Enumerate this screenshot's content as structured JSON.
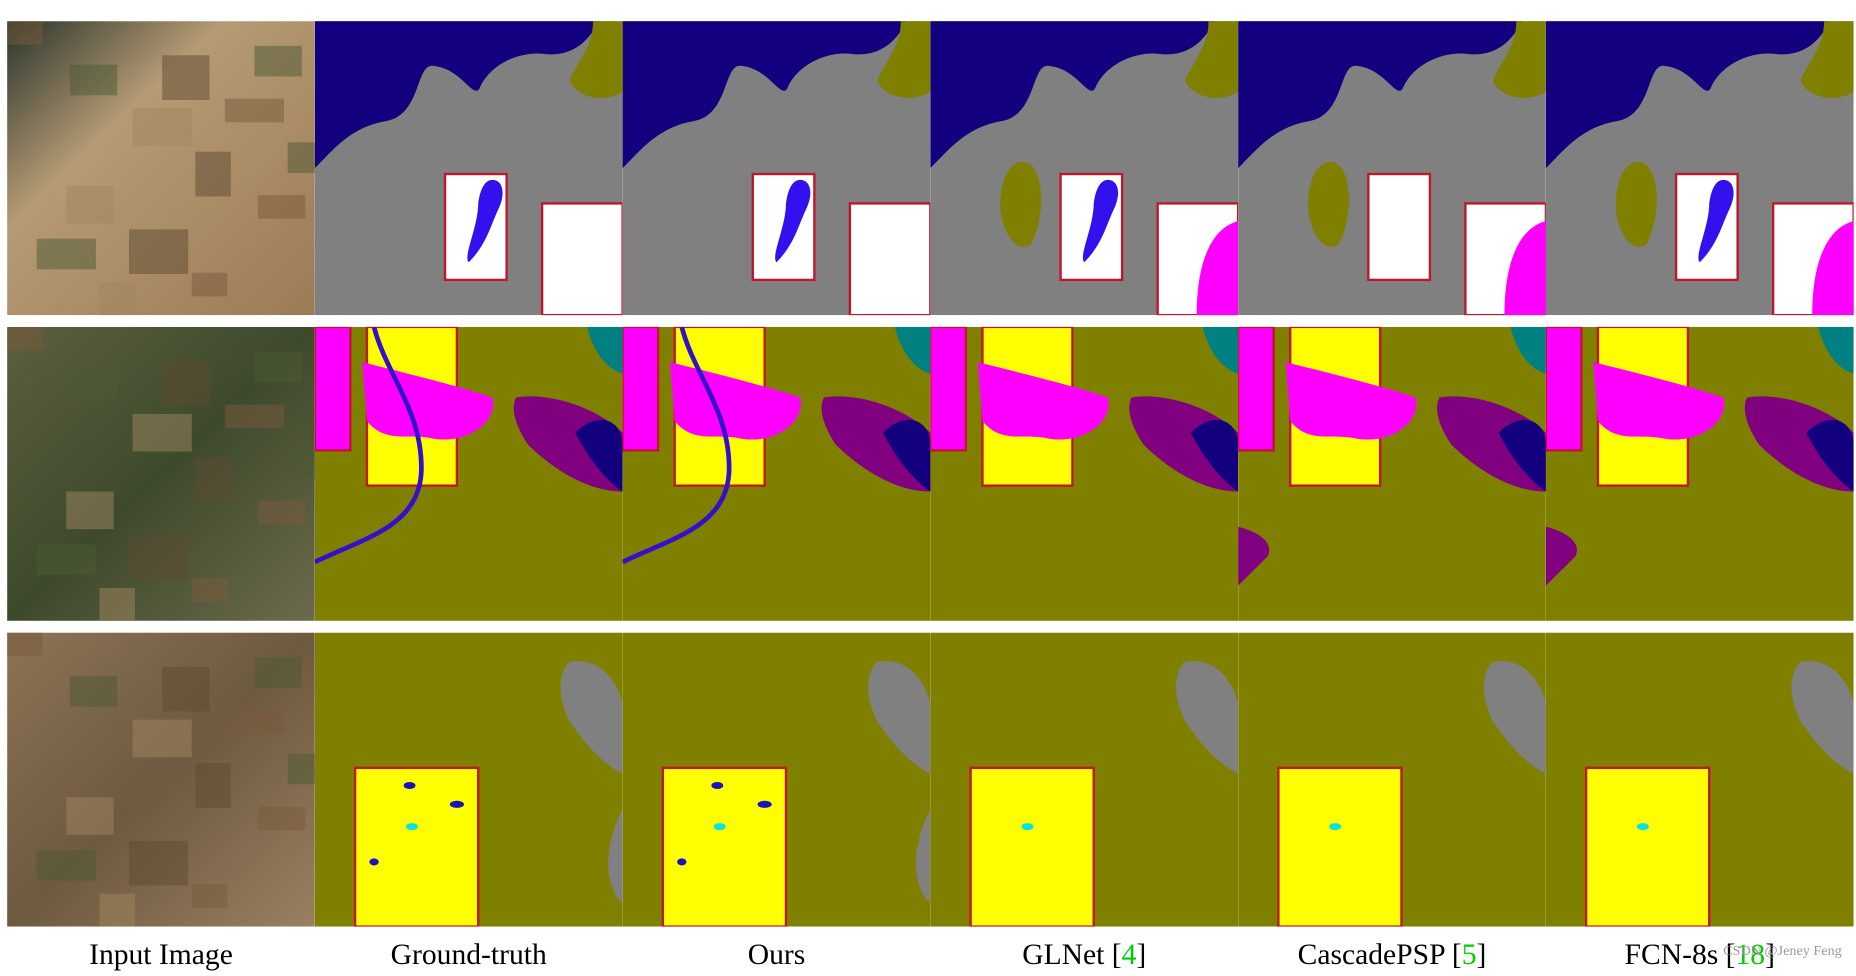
{
  "figure": {
    "columns": [
      {
        "parts": [
          "Input Image"
        ]
      },
      {
        "parts": [
          "Ground-truth"
        ]
      },
      {
        "parts": [
          "Ours"
        ]
      },
      {
        "parts": [
          "GLNet [",
          "4",
          "]"
        ]
      },
      {
        "parts": [
          "CascadePSP [",
          "5",
          "]"
        ]
      },
      {
        "parts": [
          "FCN-8s [",
          "18",
          "]"
        ]
      }
    ],
    "watermark": "CSDN @Jeney Feng"
  }
}
